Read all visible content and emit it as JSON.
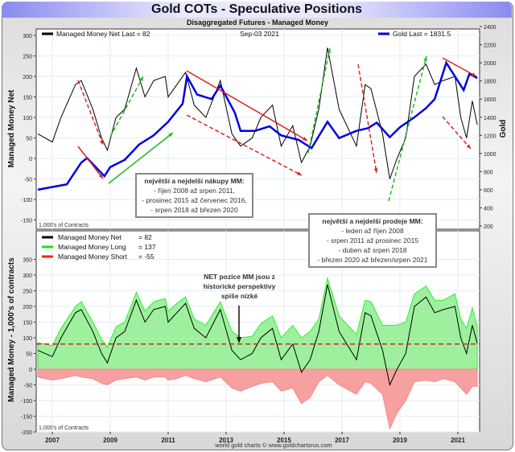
{
  "window_title": "Gold COTs - Speculative Positions",
  "chart_data": [
    {
      "type": "line",
      "title": "Disaggregated Futures - Managed Money",
      "date_label": "Sep-03  2021",
      "ylabel": "Managed Money Net",
      "y2label": "Gold",
      "units_note": "1,000's of Contracts",
      "ylim": [
        -170,
        310
      ],
      "y2lim": [
        150,
        2450
      ],
      "yticks": [
        300,
        250,
        200,
        150,
        100,
        50,
        0,
        -50,
        -100,
        -150
      ],
      "y2ticks": [
        2400,
        2200,
        2000,
        1800,
        1600,
        1400,
        1200,
        1000,
        800,
        600,
        400,
        200
      ],
      "legend": [
        {
          "label": "Managed Money Net  Last = 82",
          "color": "#000000"
        },
        {
          "label": "Gold Last = 1831.5",
          "color": "#0000dd"
        }
      ],
      "series": [
        {
          "name": "Managed Money Net",
          "color": "#000000",
          "x": [
            2006.5,
            2007,
            2007.3,
            2007.8,
            2008.0,
            2008.4,
            2008.7,
            2008.9,
            2009.2,
            2009.5,
            2009.9,
            2010.2,
            2010.5,
            2010.9,
            2011.0,
            2011.3,
            2011.6,
            2011.9,
            2012.3,
            2012.8,
            2013.2,
            2013.5,
            2013.9,
            2014.2,
            2014.6,
            2014.9,
            2015.3,
            2015.6,
            2015.9,
            2016.2,
            2016.5,
            2016.9,
            2017.1,
            2017.5,
            2017.8,
            2018.0,
            2018.4,
            2018.65,
            2018.9,
            2019.2,
            2019.5,
            2019.9,
            2020.2,
            2020.5,
            2020.9,
            2021.1,
            2021.3,
            2021.5,
            2021.67
          ],
          "values": [
            60,
            40,
            100,
            180,
            190,
            120,
            50,
            20,
            100,
            120,
            220,
            150,
            190,
            200,
            150,
            180,
            210,
            130,
            100,
            190,
            60,
            30,
            50,
            100,
            130,
            30,
            80,
            -10,
            30,
            120,
            270,
            120,
            90,
            30,
            180,
            170,
            60,
            -50,
            0,
            50,
            200,
            230,
            180,
            190,
            200,
            100,
            50,
            140,
            82
          ]
        },
        {
          "name": "Gold",
          "color": "#0000dd",
          "axis": "right",
          "x": [
            2006.5,
            2007,
            2007.5,
            2008.0,
            2008.2,
            2008.8,
            2009.0,
            2009.5,
            2010.0,
            2010.5,
            2011.0,
            2011.5,
            2011.65,
            2012.0,
            2012.5,
            2012.8,
            2013.3,
            2013.5,
            2014.0,
            2014.5,
            2014.9,
            2015.5,
            2015.95,
            2016.5,
            2016.9,
            2017.5,
            2017.9,
            2018.2,
            2018.65,
            2019.0,
            2019.5,
            2019.9,
            2020.2,
            2020.6,
            2020.9,
            2021.2,
            2021.4,
            2021.67
          ],
          "values": [
            600,
            630,
            660,
            900,
            950,
            750,
            850,
            930,
            1100,
            1200,
            1350,
            1550,
            1850,
            1650,
            1600,
            1750,
            1450,
            1250,
            1250,
            1300,
            1200,
            1150,
            1060,
            1350,
            1170,
            1250,
            1280,
            1340,
            1180,
            1290,
            1400,
            1500,
            1600,
            2000,
            1850,
            1700,
            1880,
            1831.5
          ]
        }
      ],
      "annotation": {
        "title": "největší a nejdelší nákupy MM:",
        "lines": [
          "- říjen 2008 až srpen 2011,",
          "- prosinec 2015  až červenec 2016,",
          "- srpen 2018 až březen 2020"
        ]
      }
    },
    {
      "type": "area",
      "ylabel": "Managed Money - 1,000's of contracts",
      "units_note": "1,000's of Contracts",
      "ylim": [
        -200,
        400
      ],
      "yticks": [
        350,
        300,
        250,
        200,
        150,
        100,
        50,
        0,
        -50,
        -100,
        -150,
        -200
      ],
      "xticks": [
        "2007",
        "2009",
        "2011",
        "2013",
        "2015",
        "2017",
        "2019",
        "2021"
      ],
      "xtick_values": [
        2007,
        2009,
        2011,
        2013,
        2015,
        2017,
        2019,
        2021
      ],
      "legend": [
        {
          "label": "Managed Money Net",
          "value": "= 82",
          "color": "#000000"
        },
        {
          "label": "Managed Money Long",
          "value": "= 137",
          "color": "#22dd22"
        },
        {
          "label": "Managed Money Short",
          "value": "= -55",
          "color": "#ee2222"
        }
      ],
      "reference_line": 80,
      "x": [
        2006.5,
        2007,
        2007.3,
        2007.8,
        2008.0,
        2008.4,
        2008.7,
        2008.9,
        2009.2,
        2009.5,
        2009.9,
        2010.2,
        2010.5,
        2010.9,
        2011.0,
        2011.3,
        2011.6,
        2011.9,
        2012.3,
        2012.8,
        2013.2,
        2013.5,
        2013.9,
        2014.2,
        2014.6,
        2014.9,
        2015.3,
        2015.6,
        2015.9,
        2016.2,
        2016.5,
        2016.9,
        2017.1,
        2017.5,
        2017.8,
        2018.0,
        2018.4,
        2018.65,
        2018.9,
        2019.2,
        2019.5,
        2019.9,
        2020.2,
        2020.5,
        2020.9,
        2021.1,
        2021.3,
        2021.5,
        2021.67
      ],
      "series": [
        {
          "name": "Managed Money Long",
          "color": "#22dd22",
          "values": [
            85,
            75,
            130,
            200,
            215,
            150,
            95,
            70,
            135,
            150,
            245,
            185,
            215,
            225,
            185,
            210,
            230,
            160,
            140,
            215,
            120,
            100,
            105,
            145,
            170,
            100,
            140,
            100,
            120,
            160,
            290,
            170,
            150,
            110,
            220,
            215,
            140,
            140,
            140,
            150,
            240,
            265,
            220,
            220,
            240,
            160,
            130,
            195,
            137
          ]
        },
        {
          "name": "Managed Money Short",
          "color": "#ee2222",
          "values": [
            -25,
            -35,
            -30,
            -20,
            -25,
            -30,
            -45,
            -50,
            -35,
            -30,
            -25,
            -35,
            -25,
            -25,
            -35,
            -30,
            -20,
            -30,
            -40,
            -25,
            -60,
            -70,
            -55,
            -45,
            -40,
            -70,
            -60,
            -110,
            -90,
            -40,
            -20,
            -50,
            -60,
            -80,
            -40,
            -45,
            -80,
            -190,
            -140,
            -100,
            -40,
            -35,
            -40,
            -30,
            -40,
            -60,
            -80,
            -55,
            -55
          ]
        },
        {
          "name": "Managed Money Net",
          "color": "#000000",
          "values": [
            60,
            40,
            100,
            180,
            190,
            120,
            50,
            20,
            100,
            120,
            220,
            150,
            190,
            200,
            150,
            180,
            210,
            130,
            100,
            190,
            60,
            30,
            50,
            100,
            130,
            30,
            80,
            -10,
            30,
            120,
            270,
            120,
            90,
            30,
            180,
            170,
            60,
            -50,
            0,
            50,
            200,
            230,
            180,
            190,
            200,
            100,
            50,
            140,
            82
          ]
        }
      ],
      "annotations": [
        {
          "title": "největší a nejdelší prodeje MM:",
          "lines": [
            "- leden až říjen 2008",
            "- srpen 2011 až prosinec 2015",
            "- duben až srpen 2018",
            "- březen 2020 až březen/srpen 2021"
          ]
        },
        {
          "title": "",
          "lines": [
            "NET pozice MM jsou z",
            "historické perspektivy",
            "spíše nízké"
          ]
        }
      ]
    }
  ],
  "footer": "world gold charts © www.goldchartsrus.com"
}
